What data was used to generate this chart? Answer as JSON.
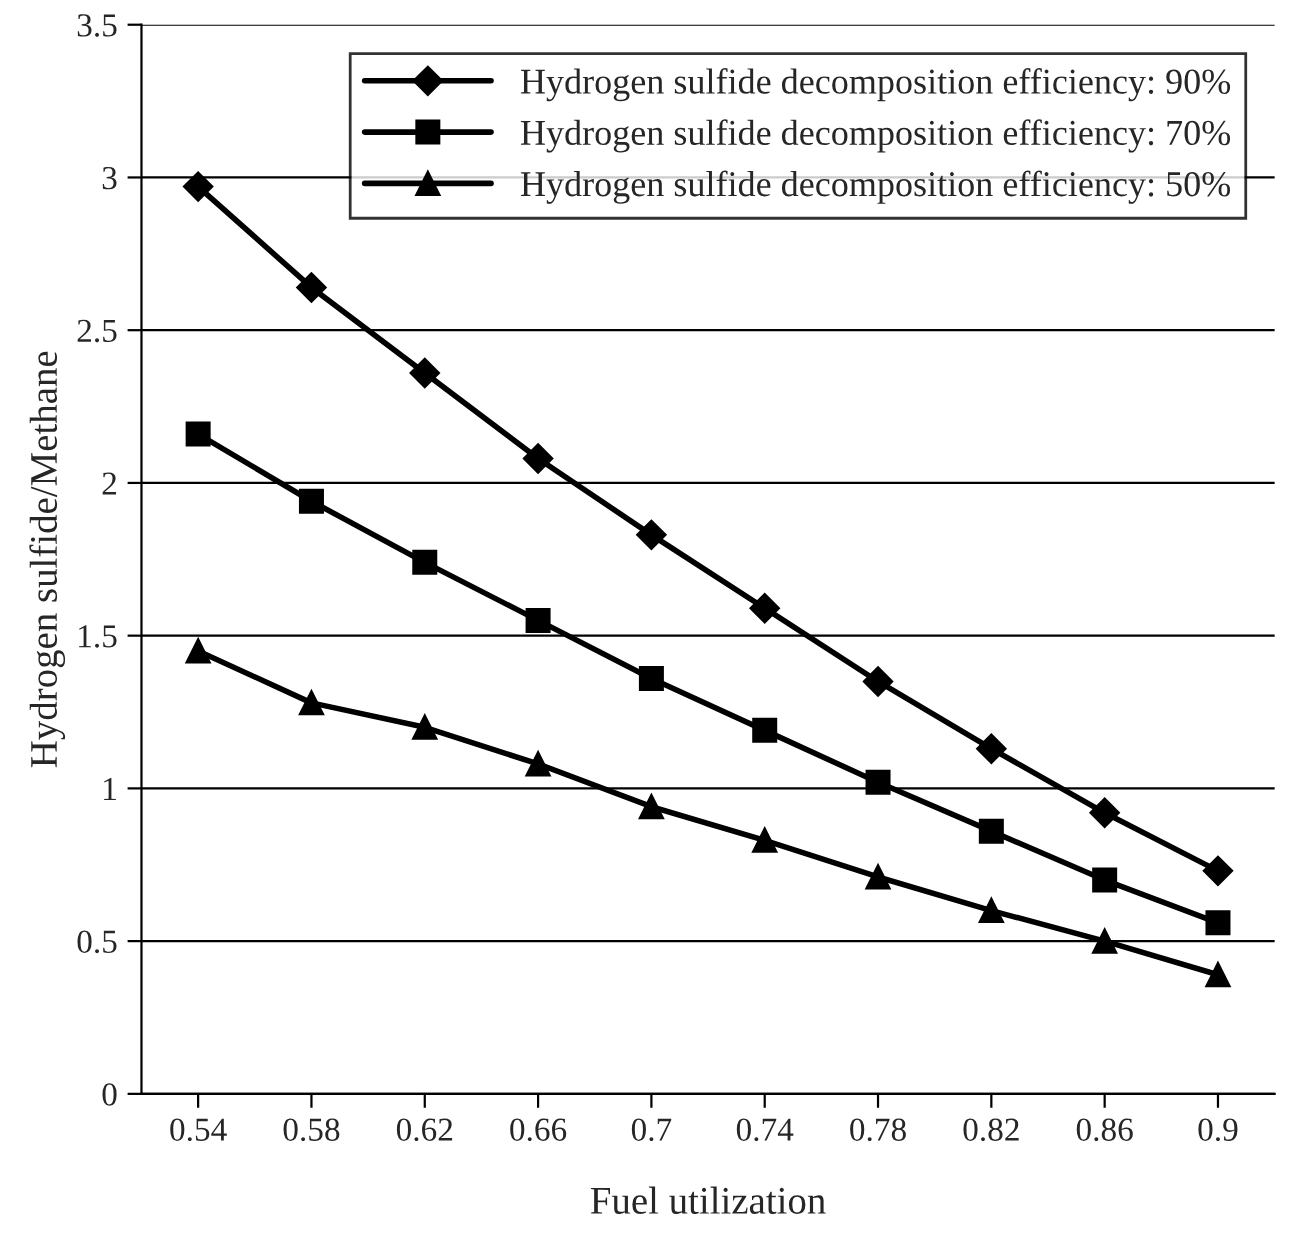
{
  "chart_data": {
    "type": "line",
    "xlabel": "Fuel utilization",
    "ylabel": "Hydrogen sulfide/Methane",
    "categories": [
      "0.54",
      "0.58",
      "0.62",
      "0.66",
      "0.7",
      "0.74",
      "0.78",
      "0.82",
      "0.86",
      "0.9"
    ],
    "series": [
      {
        "name": "Hydrogen sulfide decomposition efficiency: 90%",
        "color": "#000000",
        "marker": "diamond",
        "values": [
          2.97,
          2.64,
          2.36,
          2.08,
          1.83,
          1.59,
          1.35,
          1.13,
          0.92,
          0.73
        ]
      },
      {
        "name": "Hydrogen sulfide decomposition efficiency: 70%",
        "color": "#000000",
        "marker": "square",
        "values": [
          2.16,
          1.94,
          1.74,
          1.55,
          1.36,
          1.19,
          1.02,
          0.86,
          0.7,
          0.56
        ]
      },
      {
        "name": "Hydrogen sulfide decomposition efficiency: 50%",
        "color": "#000000",
        "marker": "triangle",
        "values": [
          1.45,
          1.28,
          1.2,
          1.08,
          0.94,
          0.83,
          0.71,
          0.6,
          0.5,
          0.39
        ]
      }
    ],
    "ylim": [
      0,
      3.5
    ],
    "yticks": [
      0,
      0.5,
      1,
      1.5,
      2,
      2.5,
      3,
      3.5
    ],
    "grid": "y",
    "legend": "top right",
    "line_style": "solid"
  }
}
